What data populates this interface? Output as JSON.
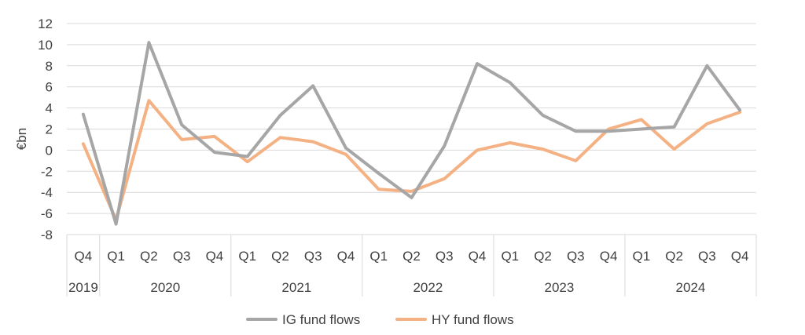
{
  "chart_data": {
    "type": "line",
    "ylabel": "€bn",
    "ylim": [
      -8,
      12
    ],
    "yticks": [
      "12",
      "10",
      "8",
      "6",
      "4",
      "2",
      "0",
      "-2",
      "-4",
      "-6",
      "-8"
    ],
    "ytick_values": [
      12,
      10,
      8,
      6,
      4,
      2,
      0,
      -2,
      -4,
      -6,
      -8
    ],
    "grid": true,
    "legend_position": "bottom",
    "categories": [
      "Q4",
      "Q1",
      "Q2",
      "Q3",
      "Q4",
      "Q1",
      "Q2",
      "Q3",
      "Q4",
      "Q1",
      "Q2",
      "Q3",
      "Q4",
      "Q1",
      "Q2",
      "Q3",
      "Q4",
      "Q1",
      "Q2",
      "Q3",
      "Q4"
    ],
    "years": [
      {
        "label": "2019",
        "start": 0,
        "end": 0
      },
      {
        "label": "2020",
        "start": 1,
        "end": 4
      },
      {
        "label": "2021",
        "start": 5,
        "end": 8
      },
      {
        "label": "2022",
        "start": 9,
        "end": 12
      },
      {
        "label": "2023",
        "start": 13,
        "end": 16
      },
      {
        "label": "2024",
        "start": 17,
        "end": 20
      }
    ],
    "series": [
      {
        "name": "IG fund flows",
        "color": "#a6a6a6",
        "values": [
          3.4,
          -7.0,
          10.2,
          2.4,
          -0.2,
          -0.6,
          3.3,
          6.1,
          0.2,
          -2.2,
          -4.5,
          0.4,
          8.2,
          6.4,
          3.3,
          1.8,
          1.8,
          2.0,
          2.2,
          8.0,
          3.8
        ]
      },
      {
        "name": "HY fund flows",
        "color": "#f4b183",
        "values": [
          0.6,
          -6.6,
          4.7,
          1.0,
          1.3,
          -1.1,
          1.2,
          0.8,
          -0.4,
          -3.7,
          -3.9,
          -2.7,
          0.0,
          0.7,
          0.1,
          -1.0,
          2.0,
          2.9,
          0.1,
          2.5,
          3.6
        ]
      }
    ]
  }
}
